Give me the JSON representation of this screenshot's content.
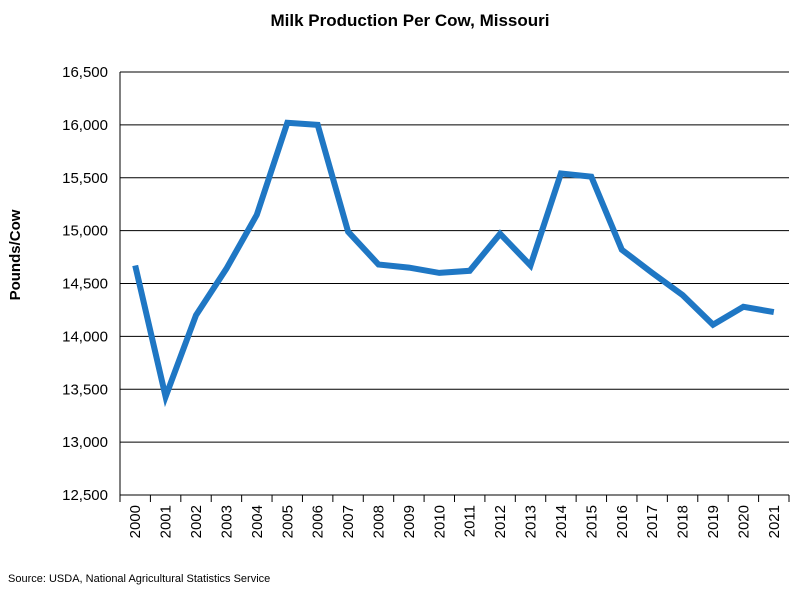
{
  "chart_data": {
    "type": "line",
    "title": "Milk Production Per Cow, Missouri",
    "xlabel": "",
    "ylabel": "Pounds/Cow",
    "source": "Source: USDA, National Agricultural Statistics Service",
    "categories": [
      "2000",
      "2001",
      "2002",
      "2003",
      "2004",
      "2005",
      "2006",
      "2007",
      "2008",
      "2009",
      "2010",
      "2011",
      "2012",
      "2013",
      "2014",
      "2015",
      "2016",
      "2017",
      "2018",
      "2019",
      "2020",
      "2021"
    ],
    "series": [
      {
        "name": "",
        "color": "#1f77c4",
        "values": [
          14670,
          13430,
          14200,
          14640,
          15150,
          16020,
          16000,
          14990,
          14680,
          14650,
          14600,
          14620,
          14970,
          14670,
          15540,
          15510,
          14820,
          14600,
          14390,
          14110,
          14280,
          14230
        ]
      }
    ],
    "ylim": [
      12500,
      16500
    ],
    "yticks": [
      "12,500",
      "13,000",
      "13,500",
      "14,000",
      "14,500",
      "15,000",
      "15,500",
      "16,000",
      "16,500"
    ],
    "ytick_values": [
      12500,
      13000,
      13500,
      14000,
      14500,
      15000,
      15500,
      16000,
      16500
    ],
    "grid": "horizontal",
    "legend": "none"
  }
}
